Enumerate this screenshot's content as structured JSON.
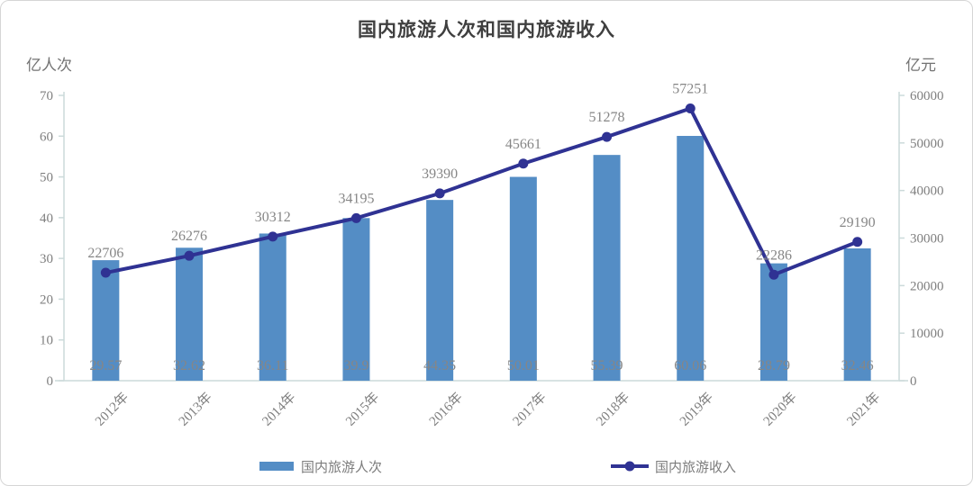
{
  "title": "国内旅游人次和国内旅游收入",
  "left_axis_unit": "亿人次",
  "right_axis_unit": "亿元",
  "legend": {
    "bar_label": "国内旅游人次",
    "line_label": "国内旅游收入"
  },
  "colors": {
    "bar": "#548dc5",
    "line": "#2f3293",
    "data_label": "#868686",
    "tick_label": "#7f7f7f",
    "axis_line": "#ccdada",
    "title": "#3f3f3f"
  },
  "chart_data": {
    "type": "bar+line",
    "title": "国内旅游人次和国内旅游收入",
    "categories": [
      "2012年",
      "2013年",
      "2014年",
      "2015年",
      "2016年",
      "2017年",
      "2018年",
      "2019年",
      "2020年",
      "2021年"
    ],
    "series": [
      {
        "name": "国内旅游人次",
        "type": "bar",
        "axis": "left",
        "values": [
          29.57,
          32.62,
          36.11,
          39.9,
          44.35,
          50.01,
          55.39,
          60.06,
          28.79,
          32.46
        ]
      },
      {
        "name": "国内旅游收入",
        "type": "line",
        "axis": "right",
        "values": [
          22706,
          26276,
          30312,
          34195,
          39390,
          45661,
          51278,
          57251,
          22286,
          29190
        ]
      }
    ],
    "left_axis": {
      "label": "亿人次",
      "min": 0,
      "max": 70,
      "step": 10
    },
    "right_axis": {
      "label": "亿元",
      "min": 0,
      "max": 60000,
      "step": 10000
    },
    "grid": false,
    "legend_position": "bottom",
    "x_tick_rotation": -45
  }
}
